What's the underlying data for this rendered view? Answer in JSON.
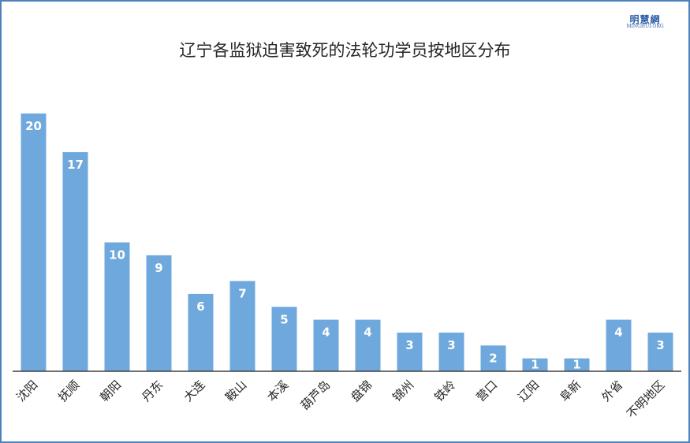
{
  "logo": {
    "text_cn": "明慧網",
    "text_en": "MINGHUI.ORG"
  },
  "chart_data": {
    "type": "bar",
    "title": "辽宁各监狱迫害致死的法轮功学员按地区分布",
    "xlabel": "",
    "ylabel": "",
    "ylim": [
      0,
      20
    ],
    "grid": false,
    "legend": "none",
    "bar_color": "#6fa8dc",
    "categories": [
      "沈阳",
      "抚顺",
      "朝阳",
      "丹东",
      "大连",
      "鞍山",
      "本溪",
      "葫芦岛",
      "盘锦",
      "锦州",
      "铁岭",
      "营口",
      "辽阳",
      "阜新",
      "外省",
      "不明地区"
    ],
    "values": [
      20,
      17,
      10,
      9,
      6,
      7,
      5,
      4,
      4,
      3,
      3,
      2,
      1,
      1,
      4,
      3
    ]
  }
}
